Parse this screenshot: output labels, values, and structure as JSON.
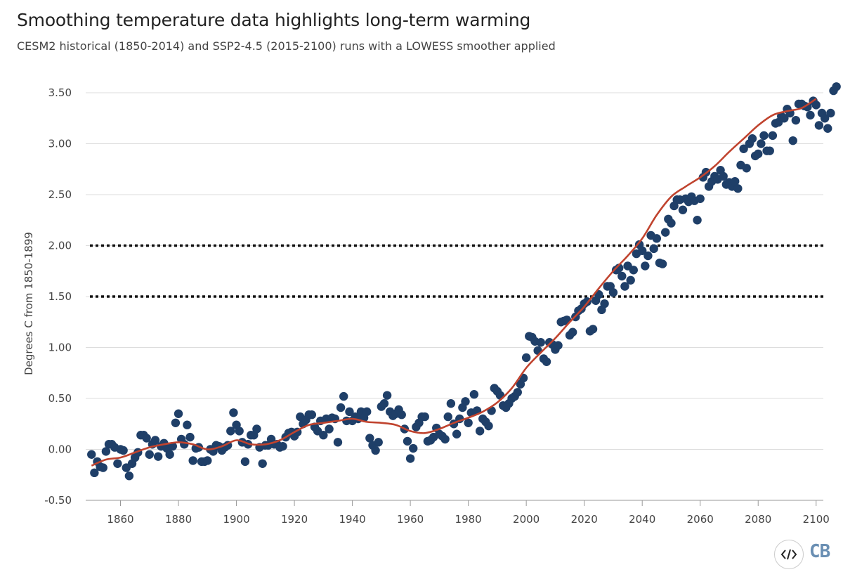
{
  "title": "Smoothing temperature data highlights long-term warming",
  "subtitle": "CESM2 historical (1850-2014) and SSP2-4.5 (2015-2100) runs with a LOWESS smoother applied",
  "branding": {
    "logo_text": "CB",
    "embed_icon": "code-embed-icon"
  },
  "colors": {
    "points": "#1f3f68",
    "smooth": "#c0432e",
    "threshold": "#111111",
    "grid": "#dddddd"
  },
  "chart_data": {
    "type": "scatter",
    "title": "Smoothing temperature data highlights long-term warming",
    "subtitle": "CESM2 historical (1850-2014) and SSP2-4.5 (2015-2100) runs with a LOWESS smoother applied",
    "xlabel": "",
    "ylabel": "Degrees C from 1850-1899",
    "xlim": [
      1848,
      2102
    ],
    "ylim": [
      -0.5,
      3.5
    ],
    "x_ticks": [
      "1860",
      "1880",
      "1900",
      "1920",
      "1940",
      "1960",
      "1980",
      "2000",
      "2020",
      "2040",
      "2060",
      "2080",
      "2100"
    ],
    "y_ticks": [
      "3.50",
      "3.00",
      "2.50",
      "2.00",
      "1.50",
      "1.00",
      "0.50",
      "0.00",
      "-0.50"
    ],
    "grid": "horizontal",
    "threshold_lines": [
      2.0,
      1.5
    ],
    "series": [
      {
        "kind": "points",
        "x_start": 1850,
        "values": [
          -0.05,
          -0.23,
          -0.12,
          -0.17,
          -0.18,
          -0.02,
          0.05,
          0.05,
          0.02,
          -0.14,
          0.0,
          -0.01,
          -0.18,
          -0.26,
          -0.14,
          -0.08,
          -0.03,
          0.14,
          0.14,
          0.11,
          -0.05,
          0.05,
          0.09,
          -0.07,
          0.03,
          0.06,
          0.01,
          -0.05,
          0.03,
          0.26,
          0.35,
          0.1,
          0.05,
          0.24,
          0.12,
          -0.11,
          0.01,
          0.02,
          -0.12,
          -0.12,
          -0.11,
          0.0,
          -0.02,
          0.04,
          0.03,
          -0.01,
          0.02,
          0.04,
          0.18,
          0.36,
          0.24,
          0.18,
          0.07,
          -0.12,
          0.05,
          0.14,
          0.14,
          0.2,
          0.02,
          -0.14,
          0.04,
          0.04,
          0.1,
          0.05,
          0.05,
          0.02,
          0.03,
          0.12,
          0.16,
          0.17,
          0.13,
          0.17,
          0.32,
          0.25,
          0.29,
          0.34,
          0.34,
          0.22,
          0.18,
          0.28,
          0.14,
          0.3,
          0.2,
          0.31,
          0.3,
          0.07,
          0.41,
          0.52,
          0.28,
          0.37,
          0.28,
          0.32,
          0.3,
          0.37,
          0.31,
          0.37,
          0.11,
          0.04,
          -0.01,
          0.07,
          0.42,
          0.45,
          0.53,
          0.37,
          0.33,
          0.35,
          0.39,
          0.34,
          0.2,
          0.08,
          -0.09,
          0.01,
          0.22,
          0.26,
          0.32,
          0.32,
          0.08,
          0.09,
          0.12,
          0.21,
          0.15,
          0.13,
          0.1,
          0.32,
          0.45,
          0.25,
          0.15,
          0.3,
          0.41,
          0.47,
          0.26,
          0.36,
          0.54,
          0.38,
          0.18,
          0.3,
          0.27,
          0.23,
          0.38,
          0.6,
          0.57,
          0.53,
          0.43,
          0.41,
          0.45,
          0.5,
          0.52,
          0.56,
          0.64,
          0.7,
          0.9,
          1.11,
          1.1,
          1.06,
          0.97,
          1.05,
          0.89,
          0.86,
          1.05,
          1.03,
          0.98,
          1.02,
          1.25,
          1.26,
          1.27,
          1.12,
          1.15,
          1.3,
          1.36,
          1.38,
          1.43,
          1.45,
          1.16,
          1.18,
          1.46,
          1.52,
          1.37,
          1.43,
          1.6,
          1.6,
          1.54,
          1.76,
          1.78,
          1.7,
          1.6,
          1.8,
          1.66,
          1.76,
          1.92,
          2.01,
          1.95,
          1.8,
          1.9,
          2.1,
          1.97,
          2.07,
          1.83,
          1.82,
          2.13,
          2.26,
          2.22,
          2.39,
          2.45,
          2.45,
          2.35,
          2.46,
          2.43,
          2.48,
          2.44,
          2.25,
          2.46,
          2.67,
          2.72,
          2.58,
          2.63,
          2.68,
          2.65,
          2.74,
          2.68,
          2.6,
          2.62,
          2.58,
          2.63,
          2.56,
          2.79,
          2.95,
          2.76,
          3.0,
          3.05,
          2.88,
          2.9,
          3.0,
          3.08,
          2.93,
          2.93,
          3.08,
          3.2,
          3.21,
          3.27,
          3.25,
          3.34,
          3.3,
          3.03,
          3.23,
          3.39,
          3.39,
          3.37,
          3.36,
          3.28,
          3.42,
          3.38,
          3.18,
          3.3,
          3.25,
          3.15,
          3.3,
          3.52,
          3.56
        ]
      },
      {
        "kind": "smooth",
        "x": [
          1850,
          1855,
          1860,
          1865,
          1870,
          1875,
          1880,
          1885,
          1890,
          1895,
          1900,
          1905,
          1910,
          1915,
          1920,
          1925,
          1930,
          1935,
          1940,
          1945,
          1950,
          1955,
          1960,
          1965,
          1970,
          1975,
          1980,
          1985,
          1990,
          1995,
          2000,
          2005,
          2010,
          2015,
          2020,
          2025,
          2030,
          2035,
          2040,
          2045,
          2050,
          2055,
          2060,
          2065,
          2070,
          2075,
          2080,
          2085,
          2090,
          2095,
          2100
        ],
        "values": [
          -0.16,
          -0.1,
          -0.08,
          -0.03,
          0.02,
          0.05,
          0.07,
          0.05,
          0.0,
          0.03,
          0.09,
          0.05,
          0.05,
          0.09,
          0.17,
          0.24,
          0.26,
          0.28,
          0.3,
          0.27,
          0.26,
          0.24,
          0.18,
          0.16,
          0.2,
          0.26,
          0.31,
          0.37,
          0.46,
          0.6,
          0.8,
          0.95,
          1.09,
          1.25,
          1.4,
          1.58,
          1.75,
          1.9,
          2.07,
          2.3,
          2.48,
          2.58,
          2.67,
          2.78,
          2.92,
          3.05,
          3.18,
          3.28,
          3.32,
          3.35,
          3.44
        ]
      }
    ]
  }
}
